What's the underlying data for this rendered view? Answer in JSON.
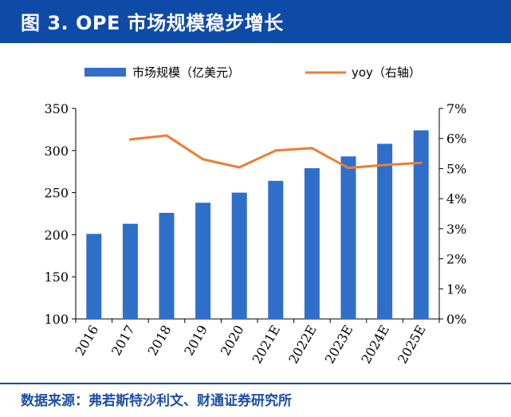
{
  "header": {
    "title": "图 3. OPE 市场规模稳步增长"
  },
  "footer": {
    "source": "数据来源：弗若斯特沙利文、财通证券研究所"
  },
  "chart_data": {
    "type": "bar",
    "categories": [
      "2016",
      "2017",
      "2018",
      "2019",
      "2020",
      "2021E",
      "2022E",
      "2023E",
      "2024E",
      "2025E"
    ],
    "series": [
      {
        "name": "市场规模（亿美元）",
        "type": "bar",
        "axis": "left",
        "color": "#2f6fc9",
        "values": [
          201,
          213,
          226,
          238,
          250,
          264,
          279,
          293,
          308,
          324
        ]
      },
      {
        "name": "yoy（右轴）",
        "type": "line",
        "axis": "right",
        "color": "#ed7d31",
        "values": [
          null,
          5.97,
          6.1,
          5.31,
          5.04,
          5.6,
          5.68,
          5.02,
          5.12,
          5.19
        ]
      }
    ],
    "left_axis": {
      "min": 100,
      "max": 350,
      "ticks": [
        "100",
        "150",
        "200",
        "250",
        "300",
        "350"
      ]
    },
    "right_axis": {
      "min": 0,
      "max": 7,
      "ticks": [
        "0%",
        "1%",
        "2%",
        "3%",
        "4%",
        "5%",
        "6%",
        "7%"
      ]
    },
    "legend_position": "top"
  }
}
